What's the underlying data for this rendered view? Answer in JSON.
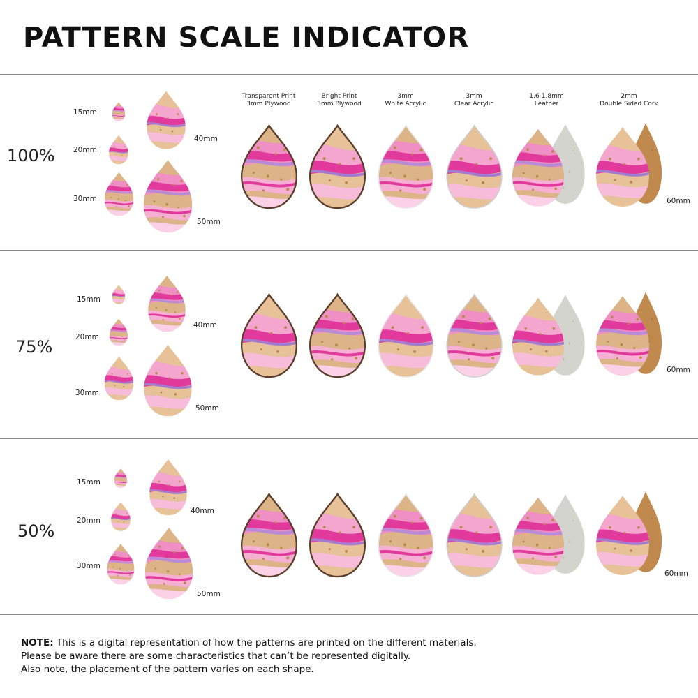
{
  "title": "PATTERN SCALE INDICATOR",
  "materials": [
    {
      "line1": "Transparent Print",
      "line2": "3mm Plywood"
    },
    {
      "line1": "Bright Print",
      "line2": "3mm Plywood"
    },
    {
      "line1": "3mm",
      "line2": "White Acrylic"
    },
    {
      "line1": "3mm",
      "line2": "Clear Acrylic"
    },
    {
      "line1": "1.6-1.8mm",
      "line2": "Leather"
    },
    {
      "line1": "2mm",
      "line2": "Double Sided Cork"
    }
  ],
  "sections": [
    {
      "scale": "100%",
      "sizes": {
        "s15": "15mm",
        "s20": "20mm",
        "s30": "30mm",
        "s40": "40mm",
        "s50": "50mm",
        "s60": "60mm"
      }
    },
    {
      "scale": "75%",
      "sizes": {
        "s15": "15mm",
        "s20": "20mm",
        "s30": "30mm",
        "s40": "40mm",
        "s50": "50mm",
        "s60": "60mm"
      }
    },
    {
      "scale": "50%",
      "sizes": {
        "s15": "15mm",
        "s20": "20mm",
        "s30": "30mm",
        "s40": "40mm",
        "s50": "50mm",
        "s60": "60mm"
      }
    }
  ],
  "note": {
    "label": "NOTE:",
    "line1": " This is a digital representation of how the patterns are printed on the different materials.",
    "line2": "Please be aware there are some characteristics that can’t be represented digitally.",
    "line3": "Also note, the placement of the pattern varies on each shape."
  },
  "colors": {
    "magenta": "#e2399c",
    "pink": "#f08fc3",
    "light_pink": "#f9c9e0",
    "lavender": "#b98ad6",
    "wood": "#d9b184",
    "gold": "#b8894a",
    "leather_back": "#d4d4ce",
    "cork_back": "#c08a4e"
  }
}
